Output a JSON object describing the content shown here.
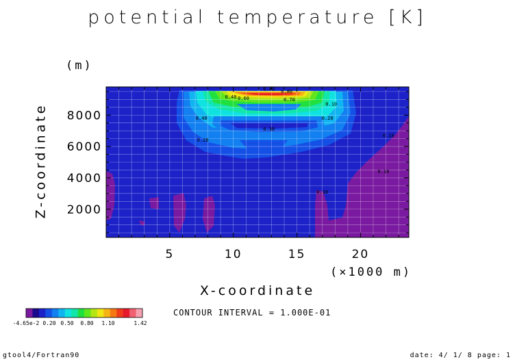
{
  "title": "potential temperature [K]",
  "footer": {
    "left": "gtool4/Fortran90",
    "right": "date: 4/ 1/ 8 page: 1"
  },
  "contour_interval": "CONTOUR INTERVAL = 1.000E-01",
  "colors": {
    "background": "#ffffff",
    "grid": "#ffffff",
    "frame": "#000000",
    "palette": [
      "#7a1aa0",
      "#1a0a8c",
      "#1c22c8",
      "#1450e6",
      "#1280f0",
      "#10b4f0",
      "#10e2e2",
      "#12e6a8",
      "#20e040",
      "#60e61c",
      "#b4e614",
      "#f0e614",
      "#f5b414",
      "#f57814",
      "#f03c1c",
      "#e61a2a",
      "#f06070",
      "#f5a0b0"
    ]
  },
  "chart_data": {
    "type": "heatmap",
    "title": "potential temperature [K]",
    "xlabel": "X-coordinate",
    "xunit": "(×1000 m)",
    "ylabel": "Z-coordinate",
    "yunit": "(m)",
    "xlim": [
      0,
      23.8
    ],
    "ylim": [
      200,
      9800
    ],
    "xticks": [
      5,
      10,
      15,
      20
    ],
    "xtick_labels": [
      "5",
      "10",
      "15",
      "20"
    ],
    "yticks": [
      2000,
      4000,
      6000,
      8000
    ],
    "ytick_labels": [
      "2000",
      "4000",
      "6000",
      "8000"
    ],
    "grid": true,
    "contour_interval": 0.1,
    "value_range": [
      -0.0465,
      1.42
    ],
    "colorbar_labels": [
      "-4.65e-2",
      "0.20",
      "0.50",
      "0.80",
      "1.10",
      "1.42"
    ],
    "contour_labels": [
      {
        "x": 12.8,
        "y": 9550,
        "text": "0.40"
      },
      {
        "x": 14.2,
        "y": 9400,
        "text": "0.80"
      },
      {
        "x": 9.8,
        "y": 9050,
        "text": "0.40"
      },
      {
        "x": 10.8,
        "y": 8980,
        "text": "0.60"
      },
      {
        "x": 14.4,
        "y": 8880,
        "text": "0.70"
      },
      {
        "x": 17.7,
        "y": 8600,
        "text": "0.10"
      },
      {
        "x": 17.4,
        "y": 7700,
        "text": "0.20"
      },
      {
        "x": 7.5,
        "y": 7700,
        "text": "0.40"
      },
      {
        "x": 12.8,
        "y": 7000,
        "text": "0.30"
      },
      {
        "x": 7.6,
        "y": 6300,
        "text": "0.20"
      },
      {
        "x": 22.2,
        "y": 6600,
        "text": "0.10"
      },
      {
        "x": 21.8,
        "y": 4300,
        "text": "0.10"
      },
      {
        "x": 17.0,
        "y": 3000,
        "text": "0.10"
      }
    ]
  }
}
